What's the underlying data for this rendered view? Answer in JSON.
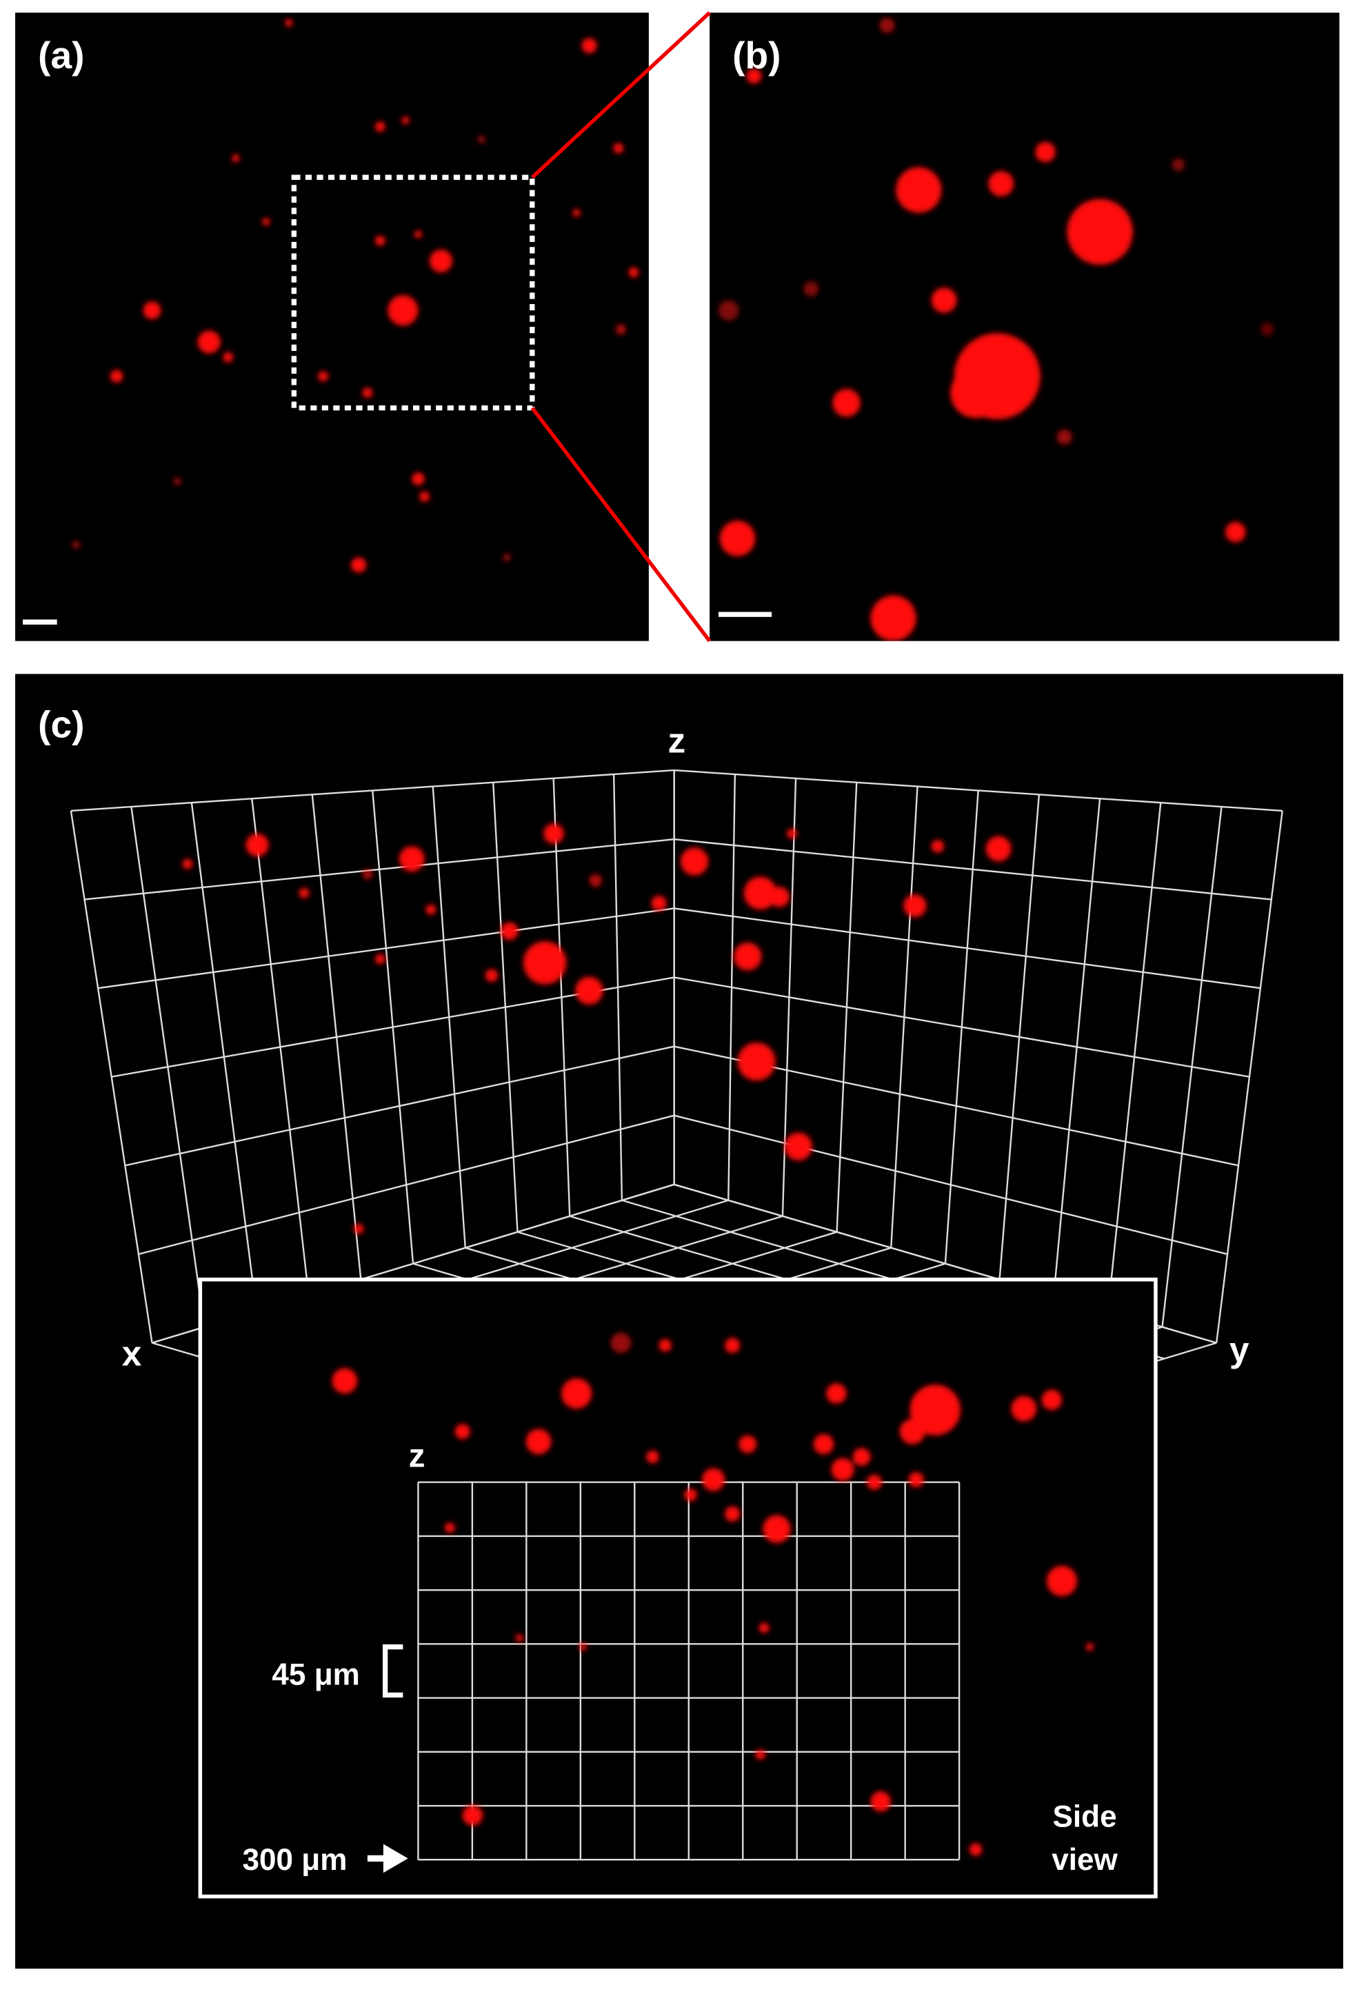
{
  "panels": {
    "a": {
      "label": "(a)"
    },
    "b": {
      "label": "(b)"
    },
    "c": {
      "label": "(c)"
    }
  },
  "axes": {
    "z": "z",
    "x": "x",
    "y": "y"
  },
  "inset": {
    "axis": "z",
    "scale_z": "45 μm",
    "scale_x": "300 μm",
    "caption": [
      "Side",
      "view"
    ]
  }
}
